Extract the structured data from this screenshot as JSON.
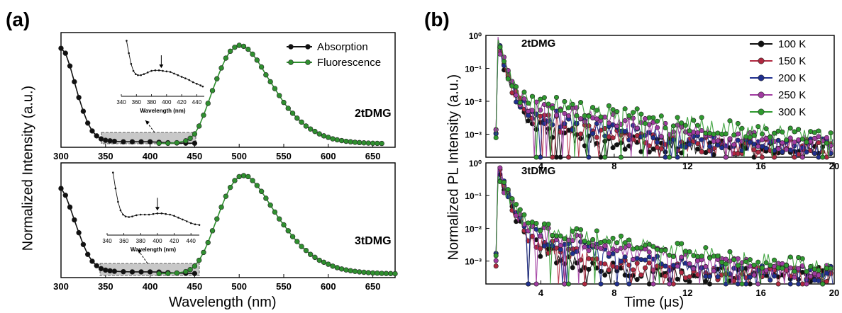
{
  "figure": {
    "panel_a_label": "(a)",
    "panel_b_label": "(b)",
    "a_xlabel": "Wavelength (nm)",
    "a_ylabel": "Normalized Intensity (a.u.)",
    "b_xlabel": "Time (μs)",
    "b_ylabel": "Normalized PL Intensity (a.u.)"
  },
  "colors": {
    "absorption": "#111111",
    "fluorescence": "#2f8f2f",
    "k100": "#111111",
    "k150": "#b0283f",
    "k200": "#1f2f8f",
    "k250": "#a03aa0",
    "k300": "#2f9a2f"
  },
  "chart_data": [
    {
      "type": "line",
      "panel": "a-top",
      "annotation": "2tDMG",
      "xlim": [
        300,
        675
      ],
      "ylim": [
        0,
        1
      ],
      "xticks": [
        300,
        350,
        400,
        450,
        500,
        550,
        600,
        650
      ],
      "legend": [
        "Absorption",
        "Fluorescence"
      ],
      "legend_position": "top-right",
      "series": [
        {
          "name": "Absorption",
          "x": [
            300,
            305,
            310,
            315,
            320,
            325,
            330,
            335,
            340,
            345,
            350,
            355,
            360,
            370,
            380,
            390,
            400,
            410,
            420,
            430,
            440,
            450
          ],
          "values": [
            0.97,
            0.92,
            0.79,
            0.63,
            0.47,
            0.33,
            0.21,
            0.13,
            0.08,
            0.05,
            0.035,
            0.03,
            0.025,
            0.02,
            0.02,
            0.02,
            0.02,
            0.015,
            0.01,
            0.008,
            0.006,
            0.005
          ]
        },
        {
          "name": "Fluorescence",
          "x": [
            410,
            420,
            430,
            440,
            445,
            450,
            455,
            460,
            465,
            470,
            475,
            480,
            485,
            490,
            495,
            500,
            505,
            510,
            515,
            520,
            525,
            530,
            535,
            540,
            545,
            550,
            555,
            560,
            565,
            570,
            575,
            580,
            585,
            590,
            595,
            600,
            605,
            610,
            615,
            620,
            625,
            630,
            635,
            640,
            645,
            650,
            655,
            660
          ],
          "values": [
            0.005,
            0.005,
            0.01,
            0.03,
            0.055,
            0.1,
            0.18,
            0.29,
            0.41,
            0.54,
            0.66,
            0.77,
            0.87,
            0.94,
            0.98,
            1.0,
            0.99,
            0.96,
            0.91,
            0.85,
            0.78,
            0.7,
            0.63,
            0.56,
            0.49,
            0.42,
            0.36,
            0.31,
            0.26,
            0.22,
            0.18,
            0.15,
            0.125,
            0.1,
            0.08,
            0.065,
            0.05,
            0.04,
            0.032,
            0.025,
            0.02,
            0.015,
            0.012,
            0.009,
            0.007,
            0.005,
            0.004,
            0.003
          ]
        }
      ],
      "inset": {
        "xlim": [
          340,
          450
        ],
        "xticks": [
          340,
          360,
          380,
          400,
          420,
          440
        ],
        "xlabel": "Wavelength (nm)",
        "marker_x": 393,
        "x": [
          347,
          350,
          353,
          356,
          359,
          362,
          366,
          370,
          375,
          380,
          385,
          390,
          395,
          400,
          405,
          410,
          415,
          420,
          425,
          430,
          435,
          440,
          445,
          448
        ],
        "values": [
          0.98,
          0.75,
          0.55,
          0.42,
          0.36,
          0.34,
          0.34,
          0.36,
          0.39,
          0.42,
          0.43,
          0.43,
          0.42,
          0.41,
          0.4,
          0.37,
          0.34,
          0.31,
          0.28,
          0.25,
          0.21,
          0.18,
          0.15,
          0.13
        ]
      }
    },
    {
      "type": "line",
      "panel": "a-bottom",
      "annotation": "3tDMG",
      "xlim": [
        300,
        675
      ],
      "ylim": [
        0,
        1
      ],
      "xticks": [
        300,
        350,
        400,
        450,
        500,
        550,
        600,
        650
      ],
      "series": [
        {
          "name": "Absorption",
          "x": [
            300,
            305,
            310,
            315,
            320,
            325,
            330,
            335,
            340,
            345,
            350,
            355,
            360,
            370,
            380,
            390,
            400,
            410,
            420,
            430,
            440,
            450
          ],
          "values": [
            0.87,
            0.8,
            0.68,
            0.55,
            0.42,
            0.3,
            0.2,
            0.13,
            0.085,
            0.055,
            0.04,
            0.033,
            0.028,
            0.024,
            0.022,
            0.022,
            0.022,
            0.02,
            0.015,
            0.01,
            0.007,
            0.005
          ]
        },
        {
          "name": "Fluorescence",
          "x": [
            410,
            420,
            430,
            440,
            445,
            450,
            455,
            460,
            465,
            470,
            475,
            480,
            485,
            490,
            495,
            500,
            505,
            510,
            515,
            520,
            525,
            530,
            535,
            540,
            545,
            550,
            555,
            560,
            565,
            570,
            575,
            580,
            585,
            590,
            595,
            600,
            605,
            610,
            615,
            620,
            625,
            630,
            635,
            640,
            645,
            650,
            655,
            660,
            665,
            670,
            675
          ],
          "values": [
            0.005,
            0.006,
            0.01,
            0.025,
            0.045,
            0.08,
            0.14,
            0.22,
            0.32,
            0.44,
            0.56,
            0.68,
            0.79,
            0.88,
            0.95,
            0.99,
            1.0,
            0.99,
            0.95,
            0.9,
            0.84,
            0.77,
            0.7,
            0.63,
            0.56,
            0.5,
            0.44,
            0.38,
            0.33,
            0.28,
            0.24,
            0.2,
            0.17,
            0.14,
            0.12,
            0.1,
            0.08,
            0.065,
            0.052,
            0.042,
            0.034,
            0.027,
            0.022,
            0.018,
            0.014,
            0.011,
            0.009,
            0.007,
            0.006,
            0.005,
            0.004
          ]
        }
      ],
      "inset": {
        "xlim": [
          340,
          450
        ],
        "xticks": [
          340,
          360,
          380,
          400,
          420,
          440
        ],
        "xlabel": "Wavelength (nm)",
        "marker_x": 400,
        "x": [
          347,
          350,
          353,
          356,
          359,
          362,
          366,
          370,
          375,
          380,
          385,
          390,
          395,
          400,
          405,
          410,
          415,
          420,
          425,
          430,
          435,
          440,
          445,
          450
        ],
        "values": [
          0.98,
          0.72,
          0.5,
          0.36,
          0.29,
          0.26,
          0.25,
          0.26,
          0.28,
          0.29,
          0.29,
          0.29,
          0.3,
          0.31,
          0.31,
          0.3,
          0.29,
          0.27,
          0.24,
          0.21,
          0.18,
          0.15,
          0.13,
          0.12
        ]
      }
    },
    {
      "type": "scatter",
      "panel": "b-top",
      "annotation": "2tDMG",
      "yscale": "log",
      "xlim": [
        1,
        20
      ],
      "ylim": [
        0.0002,
        1
      ],
      "xticks": [
        4,
        8,
        12,
        16,
        20
      ],
      "yticks": [
        "10⁰",
        "10⁻¹",
        "10⁻²",
        "10⁻³"
      ],
      "legend": [
        "100 K",
        "150 K",
        "200 K",
        "250 K",
        "300 K"
      ],
      "legend_position": "top-right",
      "series": [
        {
          "name": "100 K",
          "peak_time": 1.6,
          "fast_amp": 0.7,
          "fast_tau": 0.25,
          "slow_amp": 0.005,
          "slow_tau": 1.8,
          "floor": 0.0004
        },
        {
          "name": "150 K",
          "peak_time": 1.6,
          "fast_amp": 0.7,
          "fast_tau": 0.25,
          "slow_amp": 0.006,
          "slow_tau": 2.5,
          "floor": 0.0004
        },
        {
          "name": "200 K",
          "peak_time": 1.6,
          "fast_amp": 0.7,
          "fast_tau": 0.25,
          "slow_amp": 0.007,
          "slow_tau": 3.2,
          "floor": 0.0004
        },
        {
          "name": "250 K",
          "peak_time": 1.6,
          "fast_amp": 0.7,
          "fast_tau": 0.25,
          "slow_amp": 0.01,
          "slow_tau": 4.0,
          "floor": 0.0004
        },
        {
          "name": "300 K",
          "peak_time": 1.6,
          "fast_amp": 0.7,
          "fast_tau": 0.25,
          "slow_amp": 0.014,
          "slow_tau": 5.0,
          "floor": 0.0004
        }
      ]
    },
    {
      "type": "scatter",
      "panel": "b-bottom",
      "annotation": "3tDMG",
      "yscale": "log",
      "xlim": [
        1,
        20
      ],
      "ylim": [
        0.0002,
        1
      ],
      "xticks": [
        4,
        8,
        12,
        16,
        20
      ],
      "yticks": [
        "10⁰",
        "10⁻¹",
        "10⁻²",
        "10⁻³"
      ],
      "series": [
        {
          "name": "100 K",
          "peak_time": 1.6,
          "fast_amp": 0.7,
          "fast_tau": 0.3,
          "slow_amp": 0.008,
          "slow_tau": 1.5,
          "floor": 0.0004
        },
        {
          "name": "150 K",
          "peak_time": 1.6,
          "fast_amp": 0.7,
          "fast_tau": 0.3,
          "slow_amp": 0.01,
          "slow_tau": 2.0,
          "floor": 0.0004
        },
        {
          "name": "200 K",
          "peak_time": 1.6,
          "fast_amp": 0.7,
          "fast_tau": 0.3,
          "slow_amp": 0.011,
          "slow_tau": 2.8,
          "floor": 0.0004
        },
        {
          "name": "250 K",
          "peak_time": 1.6,
          "fast_amp": 0.7,
          "fast_tau": 0.3,
          "slow_amp": 0.012,
          "slow_tau": 3.6,
          "floor": 0.0004
        },
        {
          "name": "300 K",
          "peak_time": 1.6,
          "fast_amp": 0.7,
          "fast_tau": 0.3,
          "slow_amp": 0.015,
          "slow_tau": 4.5,
          "floor": 0.0004
        }
      ]
    }
  ]
}
